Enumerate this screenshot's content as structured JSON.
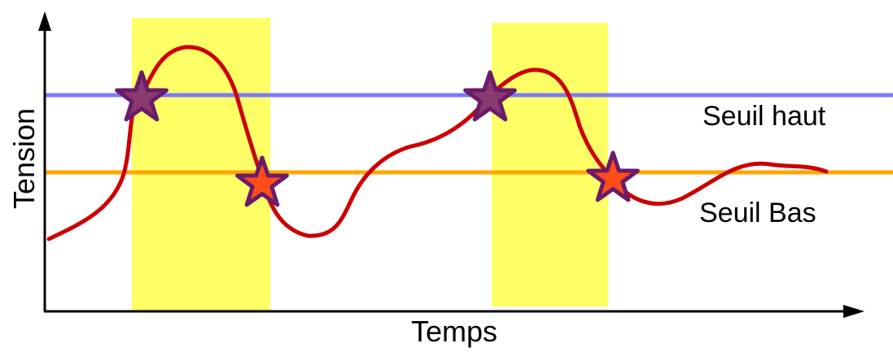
{
  "labels": {
    "y_axis": "Tension",
    "x_axis": "Temps",
    "high_threshold": "Seuil haut",
    "low_threshold": "Seuil Bas"
  },
  "colors": {
    "high_threshold_line": "#7b7bff",
    "low_threshold_line": "#ffa500",
    "signal_curve": "#cc0000",
    "highlight_band": "#ffff66",
    "star_stroke": "#6a1b6a",
    "star_fill_high": "#8a3b6e",
    "star_fill_low": "#ff4d1a",
    "axes": "#000000"
  },
  "icons": {
    "crossing_marker": "star-icon"
  }
}
